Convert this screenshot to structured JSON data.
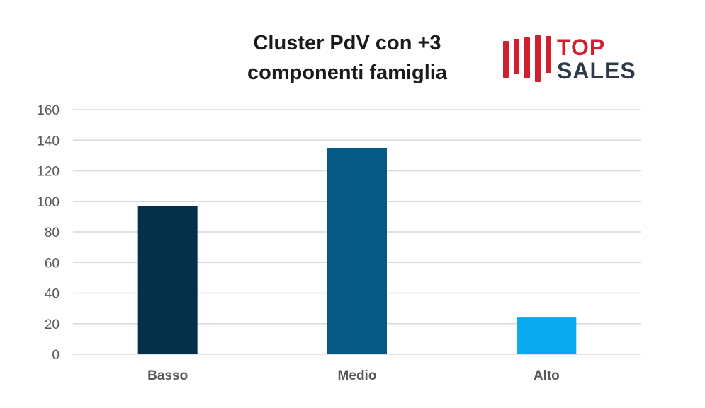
{
  "logo": {
    "line1": "TOP",
    "line2": "SALES"
  },
  "chart_data": {
    "type": "bar",
    "title_lines": [
      "Cluster PdV con +3",
      "componenti famiglia"
    ],
    "categories": [
      "Basso",
      "Medio",
      "Alto"
    ],
    "values": [
      97,
      135,
      24
    ],
    "colors": [
      "#053049",
      "#055a84",
      "#0aa8ef"
    ],
    "ylim": [
      0,
      160
    ],
    "yticks": [
      0,
      20,
      40,
      60,
      80,
      100,
      120,
      140,
      160
    ],
    "grid": true,
    "gridline_color": "#d9d9d9"
  }
}
